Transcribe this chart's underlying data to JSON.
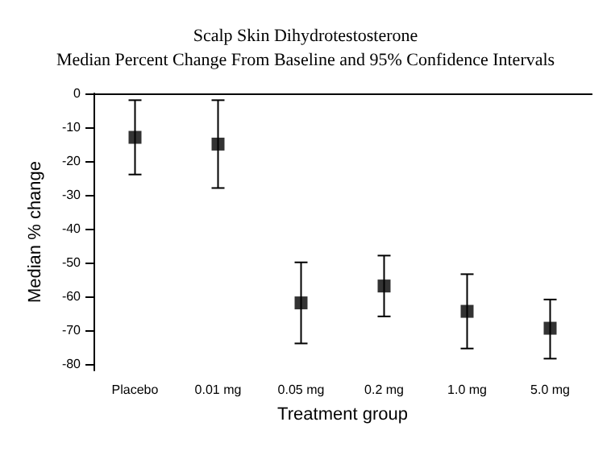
{
  "chart_data": {
    "type": "scatter",
    "title": "Scalp Skin Dihydrotestosterone",
    "subtitle": "Median Percent Change From Baseline and 95% Confidence Intervals",
    "xlabel": "Treatment group",
    "ylabel": "Median % change",
    "categories": [
      "Placebo",
      "0.01 mg",
      "0.05 mg",
      "0.2 mg",
      "1.0 mg",
      "5.0 mg"
    ],
    "values": [
      -13,
      -15,
      -62,
      -57,
      -64.5,
      -69.5
    ],
    "errors": [
      [
        -24,
        -2
      ],
      [
        -28,
        -2
      ],
      [
        -74,
        -50
      ],
      [
        -66,
        -48
      ],
      [
        -75.5,
        -53.5
      ],
      [
        -78.5,
        -61
      ]
    ],
    "color": "#000000",
    "marker": "square",
    "grid": false,
    "ylim": [
      -82,
      0
    ],
    "yticks": [
      -80,
      -70,
      -60,
      -50,
      -40,
      -30,
      -20,
      -10,
      0
    ]
  }
}
